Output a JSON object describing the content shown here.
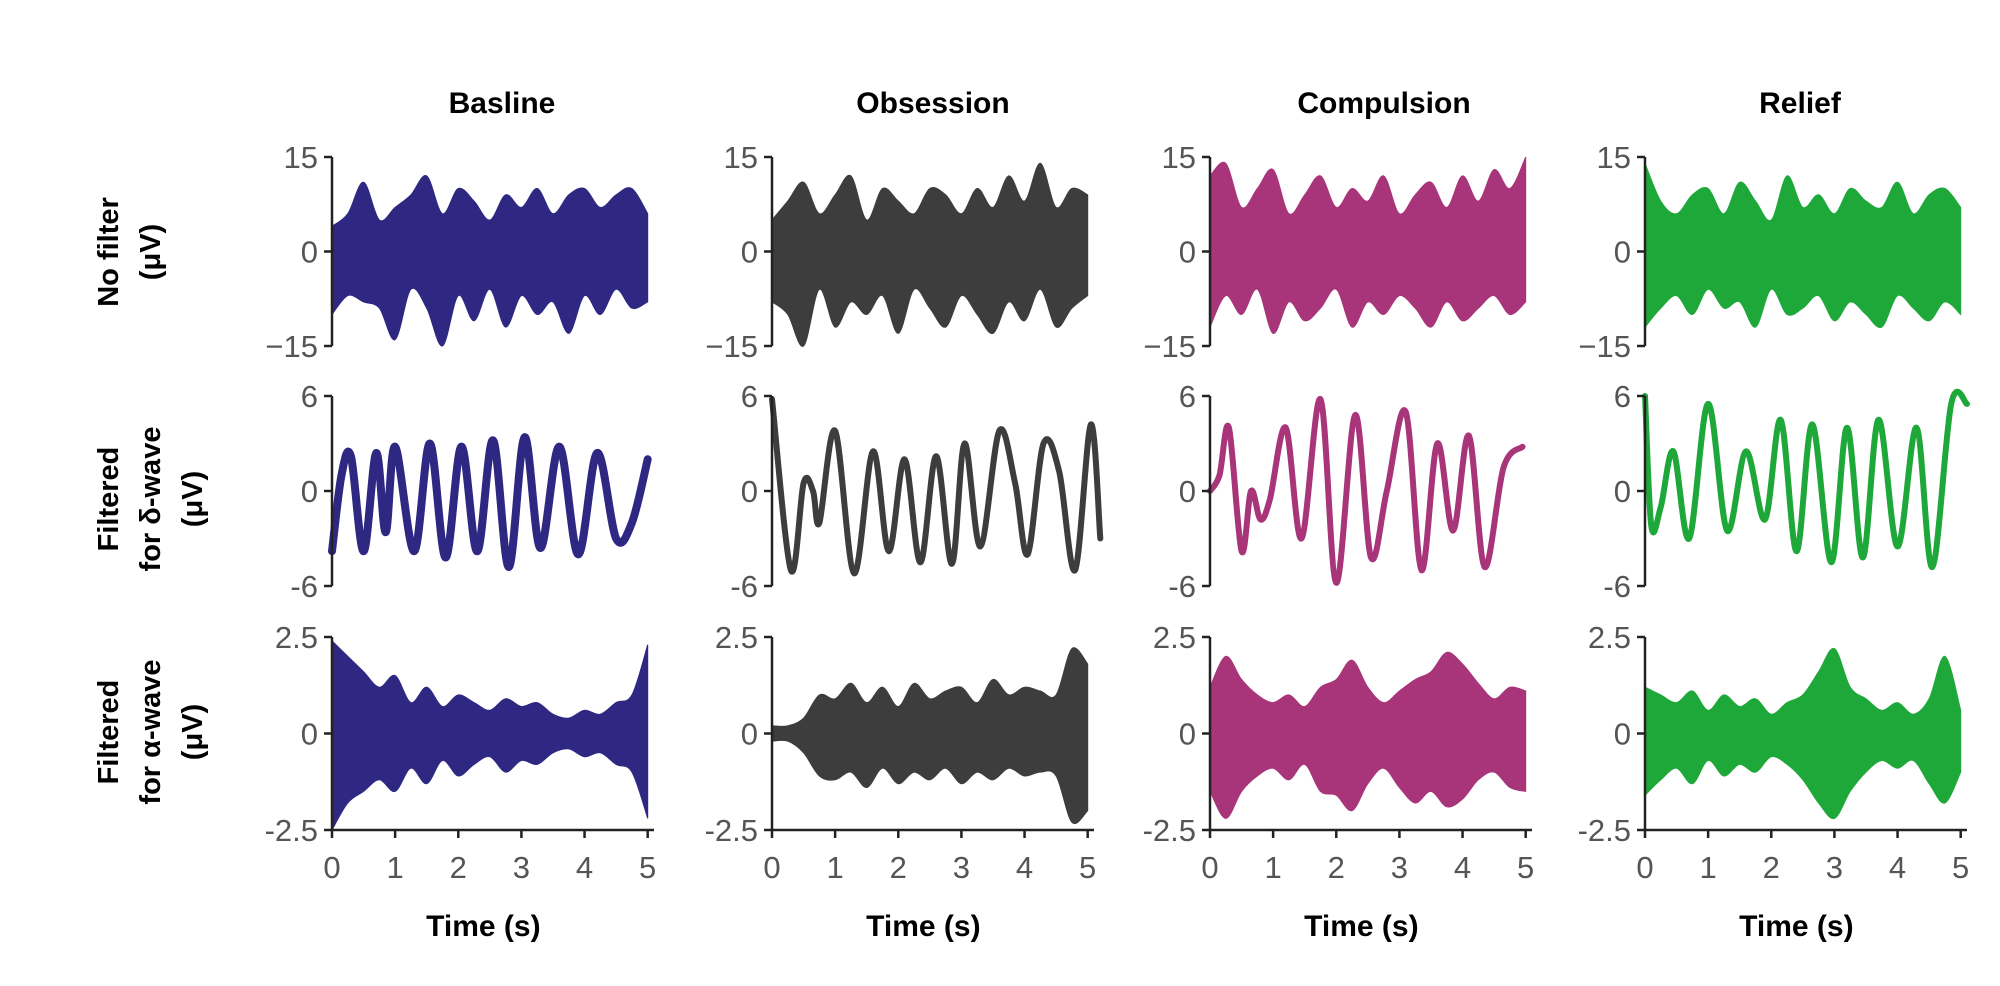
{
  "colors": {
    "Basline": "#2e2883",
    "Obsession": "#3d3d3d",
    "Compulsion": "#a8357a",
    "Relief": "#1fa83a"
  },
  "chart_data": {
    "type": "line",
    "layout": "3x4 small-multiples grid",
    "columns": [
      "Basline",
      "Obsession",
      "Compulsion",
      "Relief"
    ],
    "rows": [
      {
        "id": "raw",
        "label_lines": [
          "No filter",
          "(μV)"
        ],
        "ylim": [
          -15,
          15
        ],
        "yticks": [
          15,
          0,
          -15
        ],
        "ytick_labels": [
          "15",
          "0",
          "−15"
        ],
        "style": "envelope"
      },
      {
        "id": "delta",
        "label_lines": [
          "Filtered",
          "for δ-wave",
          "(μV)"
        ],
        "ylim": [
          -6,
          6
        ],
        "yticks": [
          6,
          0,
          -6
        ],
        "ytick_labels": [
          "6",
          "0",
          "-6"
        ],
        "style": "line"
      },
      {
        "id": "alpha",
        "label_lines": [
          "Filtered",
          "for α-wave",
          "(μV)"
        ],
        "ylim": [
          -2.5,
          2.5
        ],
        "yticks": [
          2.5,
          0,
          -2.5
        ],
        "ytick_labels": [
          "2.5",
          "0",
          "-2.5"
        ],
        "style": "envelope"
      }
    ],
    "xlim": [
      0,
      5.1
    ],
    "xticks": [
      0,
      1,
      2,
      3,
      4,
      5
    ],
    "xtick_labels": [
      "0",
      "1",
      "2",
      "3",
      "4",
      "5"
    ],
    "xlabel": "Time (s)",
    "grid": false,
    "legend": "none",
    "series": {
      "raw": {
        "Basline": {
          "x": [
            0,
            0.25,
            0.5,
            0.75,
            1,
            1.25,
            1.5,
            1.75,
            2,
            2.25,
            2.5,
            2.75,
            3,
            3.25,
            3.5,
            3.75,
            4,
            4.25,
            4.5,
            4.75,
            5
          ],
          "upper": [
            4,
            6,
            11,
            5,
            7,
            9,
            12,
            6,
            10,
            8,
            5,
            9,
            7,
            10,
            6,
            9,
            10,
            7,
            9,
            10,
            6
          ],
          "lower": [
            -10,
            -7,
            -8,
            -9,
            -14,
            -6,
            -9,
            -15,
            -7,
            -11,
            -6,
            -12,
            -7,
            -10,
            -8,
            -13,
            -7,
            -10,
            -6,
            -9,
            -8
          ]
        },
        "Obsession": {
          "x": [
            0,
            0.25,
            0.5,
            0.75,
            1,
            1.25,
            1.5,
            1.75,
            2,
            2.25,
            2.5,
            2.75,
            3,
            3.25,
            3.5,
            3.75,
            4,
            4.25,
            4.5,
            4.75,
            5
          ],
          "upper": [
            5,
            8,
            11,
            6,
            9,
            12,
            5,
            10,
            8,
            6,
            10,
            9,
            6,
            10,
            7,
            12,
            8,
            14,
            7,
            10,
            9
          ],
          "lower": [
            -8,
            -10,
            -15,
            -6,
            -12,
            -8,
            -10,
            -7,
            -13,
            -6,
            -9,
            -12,
            -7,
            -10,
            -13,
            -8,
            -11,
            -6,
            -12,
            -9,
            -7
          ]
        },
        "Compulsion": {
          "x": [
            0,
            0.25,
            0.5,
            0.75,
            1,
            1.25,
            1.5,
            1.75,
            2,
            2.25,
            2.5,
            2.75,
            3,
            3.25,
            3.5,
            3.75,
            4,
            4.25,
            4.5,
            4.75,
            5
          ],
          "upper": [
            12,
            14,
            7,
            10,
            13,
            6,
            9,
            12,
            7,
            10,
            8,
            12,
            6,
            9,
            11,
            7,
            12,
            8,
            13,
            10,
            15
          ],
          "lower": [
            -12,
            -7,
            -10,
            -6,
            -13,
            -8,
            -11,
            -9,
            -6,
            -12,
            -8,
            -10,
            -7,
            -9,
            -12,
            -8,
            -11,
            -9,
            -7,
            -10,
            -8
          ]
        },
        "Relief": {
          "x": [
            0,
            0.25,
            0.5,
            0.75,
            1,
            1.25,
            1.5,
            1.75,
            2,
            2.25,
            2.5,
            2.75,
            3,
            3.25,
            3.5,
            3.75,
            4,
            4.25,
            4.5,
            4.75,
            5
          ],
          "upper": [
            14,
            8,
            6,
            9,
            10,
            6,
            11,
            8,
            5,
            12,
            7,
            9,
            6,
            10,
            8,
            7,
            11,
            6,
            9,
            10,
            7
          ],
          "lower": [
            -12,
            -9,
            -7,
            -10,
            -6,
            -9,
            -8,
            -12,
            -6,
            -10,
            -9,
            -7,
            -11,
            -8,
            -10,
            -12,
            -7,
            -9,
            -11,
            -8,
            -10
          ]
        }
      },
      "delta": {
        "Basline": {
          "x": [
            0,
            0.15,
            0.3,
            0.5,
            0.7,
            0.85,
            1.0,
            1.3,
            1.55,
            1.8,
            2.05,
            2.3,
            2.55,
            2.8,
            3.05,
            3.3,
            3.6,
            3.9,
            4.2,
            4.5,
            4.75,
            5.0
          ],
          "y": [
            -3.8,
            1.0,
            2.2,
            -3.8,
            2.4,
            -2.6,
            2.8,
            -3.8,
            3.0,
            -4.2,
            2.8,
            -3.8,
            3.2,
            -4.8,
            3.4,
            -3.6,
            2.8,
            -4.0,
            2.4,
            -3.0,
            -2.0,
            2.0
          ]
        },
        "Obsession": {
          "x": [
            0,
            0.3,
            0.5,
            0.65,
            0.75,
            1.0,
            1.3,
            1.6,
            1.85,
            2.1,
            2.35,
            2.6,
            2.85,
            3.05,
            3.3,
            3.6,
            3.85,
            4.05,
            4.3,
            4.55,
            4.8,
            5.05,
            5.2
          ],
          "y": [
            5.8,
            -5.0,
            0.5,
            0.0,
            -2.0,
            3.8,
            -5.2,
            2.5,
            -3.8,
            2.0,
            -4.5,
            2.2,
            -4.6,
            3.0,
            -3.5,
            3.8,
            0.5,
            -4.0,
            3.0,
            1.2,
            -5.0,
            4.2,
            -3.0
          ]
        },
        "Compulsion": {
          "x": [
            0,
            0.15,
            0.3,
            0.5,
            0.65,
            0.8,
            0.95,
            1.2,
            1.45,
            1.75,
            2.0,
            2.3,
            2.55,
            2.8,
            3.1,
            3.35,
            3.6,
            3.85,
            4.1,
            4.35,
            4.65,
            4.95
          ],
          "y": [
            0,
            1.0,
            4.0,
            -3.8,
            0.0,
            -1.8,
            -0.5,
            4.0,
            -3.0,
            5.8,
            -5.8,
            4.8,
            -4.2,
            0.0,
            5.0,
            -5.0,
            3.0,
            -2.5,
            3.5,
            -4.8,
            1.5,
            2.8
          ]
        },
        "Relief": {
          "x": [
            0,
            0.1,
            0.25,
            0.45,
            0.7,
            1.0,
            1.3,
            1.6,
            1.9,
            2.15,
            2.4,
            2.65,
            2.95,
            3.2,
            3.45,
            3.7,
            4.0,
            4.3,
            4.55,
            4.85,
            5.1
          ],
          "y": [
            6.0,
            -2.2,
            -1.0,
            2.5,
            -3.0,
            5.5,
            -2.5,
            2.5,
            -1.8,
            4.5,
            -3.8,
            4.2,
            -4.5,
            4.0,
            -4.2,
            4.5,
            -3.5,
            4.0,
            -4.8,
            5.5,
            5.5
          ]
        }
      },
      "alpha": {
        "Basline": {
          "x": [
            0,
            0.25,
            0.5,
            0.75,
            1,
            1.25,
            1.5,
            1.75,
            2,
            2.25,
            2.5,
            2.75,
            3,
            3.25,
            3.5,
            3.75,
            4,
            4.25,
            4.5,
            4.75,
            5
          ],
          "upper": [
            2.4,
            2.0,
            1.6,
            1.2,
            1.5,
            0.8,
            1.2,
            0.7,
            1.0,
            0.8,
            0.6,
            0.9,
            0.7,
            0.8,
            0.5,
            0.4,
            0.6,
            0.5,
            0.8,
            1.0,
            2.3
          ],
          "lower": [
            -2.5,
            -1.8,
            -1.5,
            -1.2,
            -1.5,
            -0.9,
            -1.3,
            -0.7,
            -1.1,
            -0.8,
            -0.6,
            -1.0,
            -0.7,
            -0.8,
            -0.5,
            -0.4,
            -0.6,
            -0.5,
            -0.8,
            -1.0,
            -2.2
          ]
        },
        "Obsession": {
          "x": [
            0,
            0.25,
            0.5,
            0.75,
            1,
            1.25,
            1.5,
            1.75,
            2,
            2.25,
            2.5,
            2.75,
            3,
            3.25,
            3.5,
            3.75,
            4,
            4.25,
            4.5,
            4.75,
            5
          ],
          "upper": [
            0.2,
            0.2,
            0.4,
            1.0,
            0.9,
            1.3,
            0.8,
            1.2,
            0.7,
            1.3,
            0.9,
            1.1,
            1.2,
            0.8,
            1.4,
            1.0,
            1.2,
            1.1,
            1.0,
            2.2,
            1.8
          ],
          "lower": [
            -0.2,
            -0.2,
            -0.5,
            -1.1,
            -1.2,
            -1.0,
            -1.4,
            -0.9,
            -1.3,
            -1.0,
            -1.2,
            -0.9,
            -1.3,
            -1.0,
            -1.2,
            -0.9,
            -1.1,
            -1.0,
            -1.1,
            -2.3,
            -2.0
          ]
        },
        "Compulsion": {
          "x": [
            0,
            0.25,
            0.5,
            0.75,
            1,
            1.25,
            1.5,
            1.75,
            2,
            2.25,
            2.5,
            2.75,
            3,
            3.25,
            3.5,
            3.75,
            4,
            4.25,
            4.5,
            4.75,
            5
          ],
          "upper": [
            1.2,
            2.0,
            1.4,
            1.0,
            0.8,
            1.0,
            0.7,
            1.2,
            1.4,
            1.9,
            1.2,
            0.8,
            1.1,
            1.4,
            1.6,
            2.1,
            1.8,
            1.3,
            0.9,
            1.2,
            1.1
          ],
          "lower": [
            -1.5,
            -2.2,
            -1.5,
            -1.1,
            -0.9,
            -1.2,
            -0.8,
            -1.5,
            -1.6,
            -2.0,
            -1.3,
            -0.9,
            -1.4,
            -1.8,
            -1.5,
            -1.9,
            -1.7,
            -1.2,
            -1.0,
            -1.4,
            -1.5
          ]
        },
        "Relief": {
          "x": [
            0,
            0.25,
            0.5,
            0.75,
            1,
            1.25,
            1.5,
            1.75,
            2,
            2.25,
            2.5,
            2.75,
            3,
            3.25,
            3.5,
            3.75,
            4,
            4.25,
            4.5,
            4.75,
            5
          ],
          "upper": [
            1.2,
            1.0,
            0.8,
            1.1,
            0.6,
            1.0,
            0.7,
            0.9,
            0.5,
            0.8,
            1.0,
            1.6,
            2.2,
            1.2,
            0.9,
            0.6,
            0.8,
            0.5,
            0.9,
            2.0,
            0.6
          ],
          "lower": [
            -1.6,
            -1.2,
            -0.9,
            -1.3,
            -0.7,
            -1.1,
            -0.8,
            -1.0,
            -0.6,
            -0.8,
            -1.2,
            -1.8,
            -2.2,
            -1.5,
            -1.0,
            -0.7,
            -0.9,
            -0.7,
            -1.3,
            -1.8,
            -1.0
          ]
        }
      }
    }
  }
}
